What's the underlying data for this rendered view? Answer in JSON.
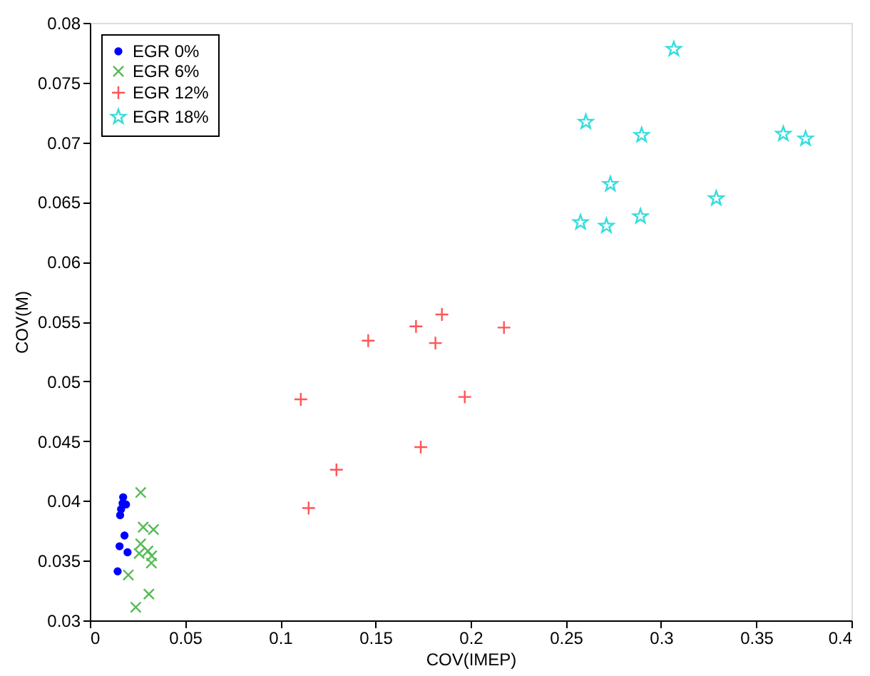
{
  "chart_data": {
    "type": "scatter",
    "xlabel": "COV(IMEP)",
    "ylabel": "COV(M)",
    "xlim": [
      0,
      0.4
    ],
    "ylim": [
      0.03,
      0.08
    ],
    "xticks": [
      0,
      0.05,
      0.1,
      0.15,
      0.2,
      0.25,
      0.3,
      0.35,
      0.4
    ],
    "yticks": [
      0.03,
      0.035,
      0.04,
      0.045,
      0.05,
      0.055,
      0.06,
      0.065,
      0.07,
      0.075,
      0.08
    ],
    "grid": false,
    "legend": "top left",
    "series": [
      {
        "name": "EGR 0%",
        "color": "#0000ff",
        "marker": "circle",
        "x": [
          0.0175,
          0.019,
          0.0172,
          0.0164,
          0.0159,
          0.0182,
          0.0156,
          0.0198,
          0.0146
        ],
        "values": [
          0.0403,
          0.0397,
          0.0398,
          0.0393,
          0.0388,
          0.0371,
          0.0362,
          0.0357,
          0.0341
        ]
      },
      {
        "name": "EGR 6%",
        "color": "#55bb55",
        "marker": "cross",
        "x": [
          0.0267,
          0.028,
          0.0334,
          0.0267,
          0.0305,
          0.0259,
          0.0325,
          0.0323,
          0.0202,
          0.031,
          0.0241
        ],
        "values": [
          0.0407,
          0.0378,
          0.0376,
          0.0364,
          0.0358,
          0.0356,
          0.0354,
          0.0348,
          0.0338,
          0.0322,
          0.0311
        ]
      },
      {
        "name": "EGR 12%",
        "color": "#ff5555",
        "marker": "plus",
        "x": [
          0.1108,
          0.1149,
          0.1295,
          0.1462,
          0.1713,
          0.1849,
          0.1815,
          0.1738,
          0.2175,
          0.1969
        ],
        "values": [
          0.0485,
          0.0394,
          0.0426,
          0.0534,
          0.0546,
          0.0556,
          0.0532,
          0.0445,
          0.0545,
          0.0487
        ]
      },
      {
        "name": "EGR 18%",
        "color": "#33dddd",
        "marker": "star",
        "x": [
          0.3067,
          0.2605,
          0.2898,
          0.3642,
          0.3759,
          0.2734,
          0.329,
          0.2892,
          0.2577,
          0.2713
        ],
        "values": [
          0.0778,
          0.0717,
          0.0706,
          0.0707,
          0.0703,
          0.0665,
          0.0653,
          0.0638,
          0.0633,
          0.063
        ]
      }
    ]
  }
}
